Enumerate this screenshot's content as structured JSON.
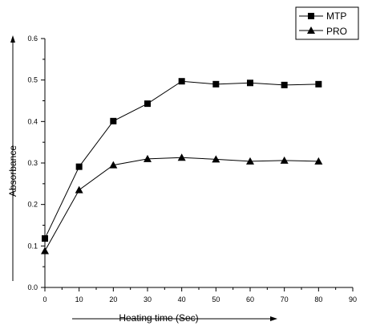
{
  "chart_data": {
    "type": "line",
    "title": "",
    "xlabel": "Heating time (Sec)",
    "ylabel": "Absorbance",
    "xlim": [
      0,
      90
    ],
    "ylim": [
      0.0,
      0.6
    ],
    "x_ticks": [
      "0",
      "10",
      "20",
      "30",
      "40",
      "50",
      "60",
      "70",
      "80",
      "90"
    ],
    "y_ticks": [
      "0.0",
      "0.1",
      "0.2",
      "0.3",
      "0.4",
      "0.5",
      "0.6"
    ],
    "grid": false,
    "legend_position": "top-right",
    "x": [
      0,
      10,
      20,
      30,
      40,
      50,
      60,
      70,
      80
    ],
    "series": [
      {
        "name": "MTP",
        "marker": "square",
        "color": "#000000",
        "values": [
          0.118,
          0.291,
          0.401,
          0.443,
          0.497,
          0.49,
          0.493,
          0.488,
          0.49
        ]
      },
      {
        "name": "PRO",
        "marker": "triangle",
        "color": "#000000",
        "values": [
          0.088,
          0.235,
          0.295,
          0.31,
          0.313,
          0.309,
          0.304,
          0.306,
          0.304
        ]
      }
    ]
  }
}
